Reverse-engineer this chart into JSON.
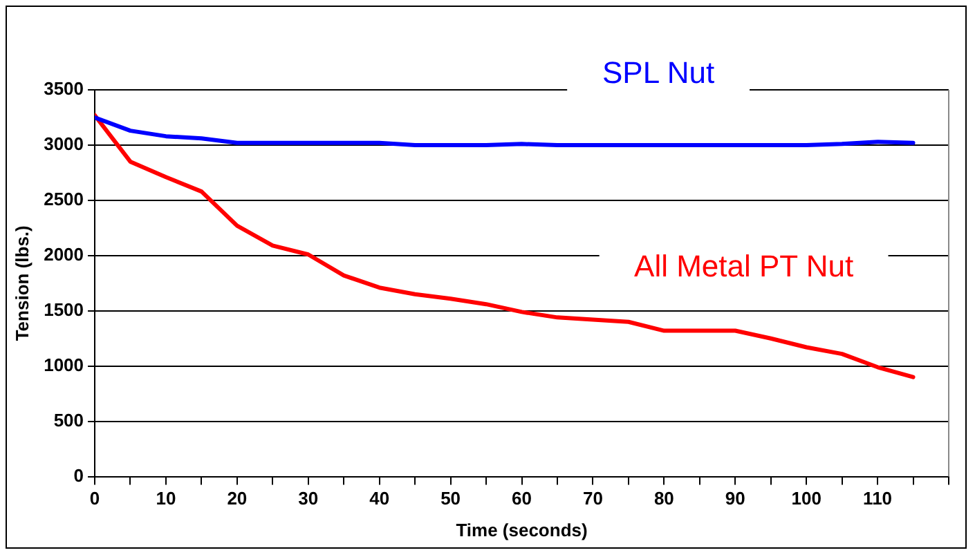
{
  "chart_data": {
    "type": "line",
    "xlabel": "Time (seconds)",
    "ylabel": "Tension (lbs.)",
    "x": [
      0,
      5,
      10,
      15,
      20,
      25,
      30,
      35,
      40,
      45,
      50,
      55,
      60,
      65,
      70,
      75,
      80,
      85,
      90,
      95,
      100,
      105,
      110,
      115
    ],
    "series": [
      {
        "name": "SPL Nut",
        "color": "#0000ff",
        "values": [
          3250,
          3130,
          3080,
          3060,
          3020,
          3020,
          3020,
          3020,
          3020,
          3000,
          3000,
          3000,
          3010,
          3000,
          3000,
          3000,
          3000,
          3000,
          3000,
          3000,
          3000,
          3010,
          3030,
          3020
        ]
      },
      {
        "name": "All Metal PT Nut",
        "color": "#ff0000",
        "values": [
          3270,
          2850,
          2710,
          2580,
          2270,
          2090,
          2010,
          1820,
          1710,
          1650,
          1610,
          1560,
          1490,
          1440,
          1420,
          1400,
          1320,
          1320,
          1320,
          1250,
          1170,
          1110,
          990,
          900
        ]
      }
    ],
    "xlim": [
      0,
      120
    ],
    "xticks": [
      0,
      {
        "value": 5,
        "label": null
      },
      10,
      {
        "value": 15,
        "label": null
      },
      20,
      {
        "value": 25,
        "label": null
      },
      30,
      {
        "value": 35,
        "label": null
      },
      40,
      {
        "value": 45,
        "label": null
      },
      50,
      {
        "value": 55,
        "label": null
      },
      60,
      {
        "value": 65,
        "label": null
      },
      70,
      {
        "value": 75,
        "label": null
      },
      80,
      {
        "value": 85,
        "label": null
      },
      90,
      {
        "value": 95,
        "label": null
      },
      100,
      {
        "value": 105,
        "label": null
      },
      110,
      {
        "value": 115,
        "label": null
      },
      {
        "value": 120,
        "label": null
      }
    ],
    "ylim": [
      0,
      3500
    ],
    "yticks": [
      0,
      500,
      1000,
      1500,
      2000,
      2500,
      3000,
      3500
    ],
    "grid": "y",
    "legend": false,
    "marker": "none",
    "line_style": "solid"
  }
}
